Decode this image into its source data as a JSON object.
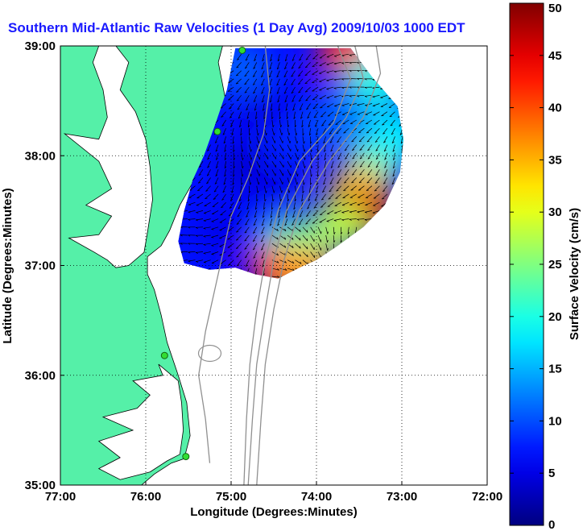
{
  "title": "Southern Mid-Atlantic Raw Velocities (1 Day Avg) 2009/10/03 1000 EDT",
  "map": {
    "xlabel": "Longitude (Degrees:Minutes)",
    "ylabel": "Latitude (Degrees:Minutes)",
    "xlim": [
      -77,
      -72
    ],
    "ylim": [
      35,
      39
    ],
    "xticks": [
      {
        "value": -77,
        "label": "77:00"
      },
      {
        "value": -76,
        "label": "76:00"
      },
      {
        "value": -75,
        "label": "75:00"
      },
      {
        "value": -74,
        "label": "74:00"
      },
      {
        "value": -73,
        "label": "73:00"
      },
      {
        "value": -72,
        "label": "72:00"
      }
    ],
    "yticks": [
      {
        "value": 35,
        "label": "35:00"
      },
      {
        "value": 36,
        "label": "36:00"
      },
      {
        "value": 37,
        "label": "37:00"
      },
      {
        "value": 38,
        "label": "38:00"
      },
      {
        "value": 39,
        "label": "39:00"
      }
    ],
    "grid": "dotted",
    "land_color": "#55f0a8",
    "ocean_color": "#ffffff",
    "radar_sites": [
      {
        "lon": -74.87,
        "lat": 38.96
      },
      {
        "lon": -75.16,
        "lat": 38.22
      },
      {
        "lon": -75.78,
        "lat": 36.18
      },
      {
        "lon": -75.53,
        "lat": 35.26
      }
    ]
  },
  "colorbar": {
    "label": "Surface Velocity (cm/s)",
    "min": 0,
    "max": 50,
    "ticks": [
      "0",
      "5",
      "10",
      "15",
      "20",
      "25",
      "30",
      "35",
      "40",
      "45",
      "50"
    ],
    "colormap": "jet"
  },
  "velocity_field": {
    "blobs": [
      {
        "lon": -74.6,
        "lat": 38.4,
        "speed": 5
      },
      {
        "lon": -74.1,
        "lat": 38.5,
        "speed": 6
      },
      {
        "lon": -74.8,
        "lat": 37.9,
        "speed": 4
      },
      {
        "lon": -74.4,
        "lat": 37.8,
        "speed": 5
      },
      {
        "lon": -75.0,
        "lat": 37.3,
        "speed": 5
      },
      {
        "lon": -74.6,
        "lat": 37.3,
        "speed": 7
      },
      {
        "lon": -74.3,
        "lat": 38.1,
        "speed": 8
      },
      {
        "lon": -73.8,
        "lat": 38.3,
        "speed": 10
      },
      {
        "lon": -73.4,
        "lat": 38.4,
        "speed": 12
      },
      {
        "lon": -73.3,
        "lat": 37.95,
        "speed": 22
      },
      {
        "lon": -73.5,
        "lat": 37.7,
        "speed": 34
      },
      {
        "lon": -73.4,
        "lat": 37.5,
        "speed": 46
      },
      {
        "lon": -73.75,
        "lat": 37.35,
        "speed": 28
      },
      {
        "lon": -74.25,
        "lat": 37.2,
        "speed": 24
      },
      {
        "lon": -74.45,
        "lat": 36.95,
        "speed": 44
      },
      {
        "lon": -74.15,
        "lat": 36.95,
        "speed": 36
      },
      {
        "lon": -73.65,
        "lat": 38.95,
        "speed": 42
      },
      {
        "lon": -73.3,
        "lat": 38.7,
        "speed": 20
      },
      {
        "lon": -73.05,
        "lat": 38.2,
        "speed": 18
      },
      {
        "lon": -74.9,
        "lat": 38.8,
        "speed": 11
      }
    ]
  }
}
